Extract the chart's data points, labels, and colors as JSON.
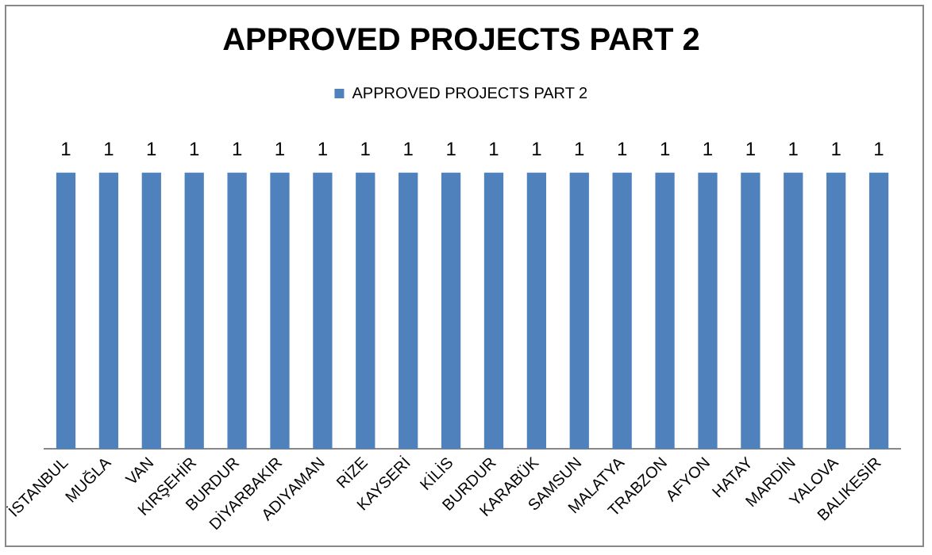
{
  "chart_data": {
    "type": "bar",
    "title": "APPROVED PROJECTS PART 2",
    "categories": [
      "İSTANBUL",
      "MUĞLA",
      "VAN",
      "KIRŞEHİR",
      "BURDUR",
      "DİYARBAKIR",
      "ADIYAMAN",
      "RİZE",
      "KAYSERİ",
      "KİLİS",
      "BURDUR",
      "KARABÜK",
      "SAMSUN",
      "MALATYA",
      "TRABZON",
      "AFYON",
      "HATAY",
      "MARDİN",
      "YALOVA",
      "BALIKESİR"
    ],
    "series": [
      {
        "name": "APPROVED PROJECTS PART 2",
        "color": "#4f81bd",
        "values": [
          1,
          1,
          1,
          1,
          1,
          1,
          1,
          1,
          1,
          1,
          1,
          1,
          1,
          1,
          1,
          1,
          1,
          1,
          1,
          1
        ]
      }
    ],
    "data_labels": true,
    "legend": "top",
    "grid": false
  }
}
